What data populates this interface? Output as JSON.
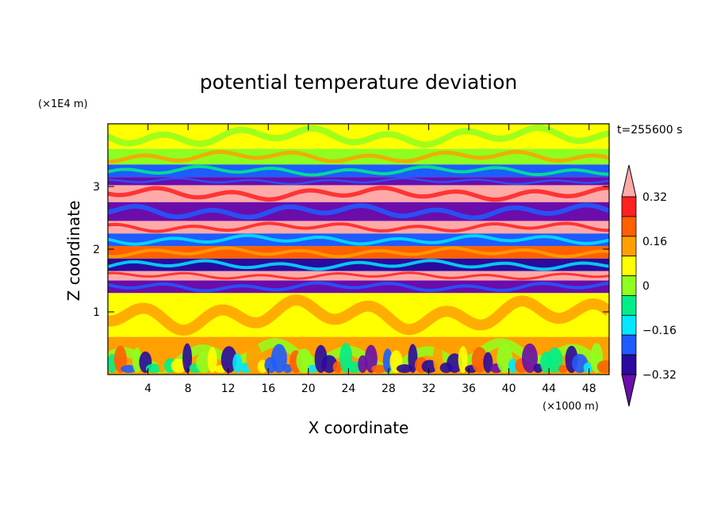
{
  "chart_data": {
    "type": "heatmap",
    "title": "potential temperature deviation",
    "time_label": "t=255600 s",
    "xlabel": "X coordinate",
    "ylabel": "Z coordinate",
    "x_unit": "(×1000 m)",
    "y_unit": "(×1E4 m)",
    "xlim": [
      0,
      50
    ],
    "ylim": [
      0,
      4
    ],
    "x_ticks": [
      4,
      8,
      12,
      16,
      20,
      24,
      28,
      32,
      36,
      40,
      44,
      48
    ],
    "y_ticks": [
      1,
      2,
      3
    ],
    "colorbar": {
      "labels": [
        "0.32",
        "0.16",
        "0",
        "−0.16",
        "−0.32"
      ],
      "label_values": [
        0.32,
        0.16,
        0,
        -0.16,
        -0.32
      ],
      "levels": [
        -0.4,
        -0.32,
        -0.24,
        -0.16,
        -0.08,
        0,
        0.08,
        0.16,
        0.24,
        0.32,
        0.4
      ],
      "colors": [
        "#6a0dab",
        "#2a0aa0",
        "#1e5cff",
        "#00e8ff",
        "#00ee88",
        "#8fff1f",
        "#ffff00",
        "#ffa000",
        "#ff6000",
        "#ff2020",
        "#ffaaa8"
      ]
    },
    "bands": [
      {
        "z": [
          3.6,
          4.0
        ],
        "value": 0.05
      },
      {
        "z": [
          3.35,
          3.6
        ],
        "value": -0.02
      },
      {
        "z": [
          3.15,
          3.35
        ],
        "value": -0.25
      },
      {
        "z": [
          3.02,
          3.15
        ],
        "value": -0.42
      },
      {
        "z": [
          2.75,
          3.02
        ],
        "value": 0.42
      },
      {
        "z": [
          2.45,
          2.75
        ],
        "value": -0.42
      },
      {
        "z": [
          2.25,
          2.45
        ],
        "value": 0.42
      },
      {
        "z": [
          2.05,
          2.25
        ],
        "value": -0.3
      },
      {
        "z": [
          1.85,
          2.05
        ],
        "value": 0.2
      },
      {
        "z": [
          1.65,
          1.85
        ],
        "value": -0.35
      },
      {
        "z": [
          1.5,
          1.65
        ],
        "value": 0.42
      },
      {
        "z": [
          1.3,
          1.5
        ],
        "value": -0.42
      },
      {
        "z": [
          0.6,
          1.3
        ],
        "value": 0.0
      },
      {
        "z": [
          0.0,
          0.6
        ],
        "value": 0.1
      }
    ]
  }
}
